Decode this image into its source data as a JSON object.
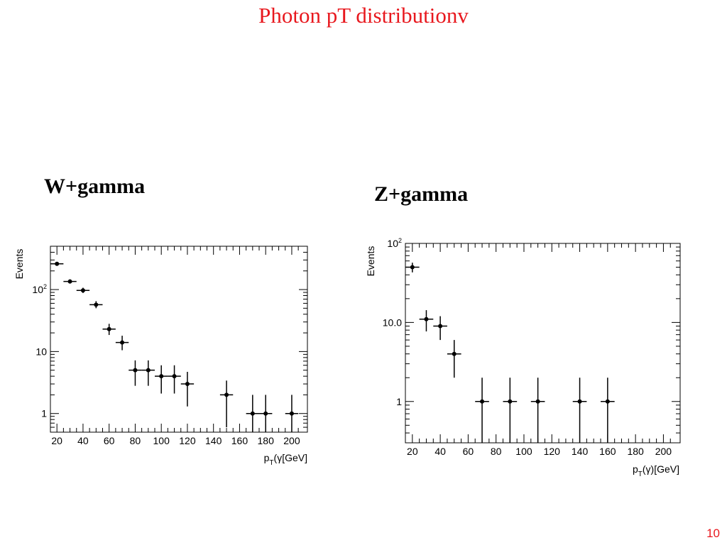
{
  "slide": {
    "title": "Photon pT distributionv",
    "page_number": "10"
  },
  "colors": {
    "title": "#e8181e",
    "page_number": "#e8181e",
    "markers": "#000000"
  },
  "chart_data": [
    {
      "type": "scatter",
      "title": "W+gamma",
      "ylabel": "Events",
      "xlabel": "p_T(γ[GeV]",
      "x_ticks": [
        "20",
        "40",
        "60",
        "80",
        "100",
        "120",
        "140",
        "160",
        "180",
        "200"
      ],
      "y_ticks": [
        "1",
        "10",
        "10^2"
      ],
      "y_scale": "log",
      "xlim": [
        15,
        212
      ],
      "ylim": [
        0.5,
        500
      ],
      "points": [
        {
          "x": 20,
          "y": 260,
          "ylo": 245,
          "yhi": 275,
          "xerr": 5
        },
        {
          "x": 30,
          "y": 135,
          "ylo": 125,
          "yhi": 146,
          "xerr": 5
        },
        {
          "x": 40,
          "y": 97,
          "ylo": 88,
          "yhi": 107,
          "xerr": 5
        },
        {
          "x": 50,
          "y": 57,
          "ylo": 50,
          "yhi": 65,
          "xerr": 5
        },
        {
          "x": 60,
          "y": 23,
          "ylo": 18.5,
          "yhi": 28,
          "xerr": 5
        },
        {
          "x": 70,
          "y": 14,
          "ylo": 10.5,
          "yhi": 18,
          "xerr": 5
        },
        {
          "x": 80,
          "y": 5,
          "ylo": 2.8,
          "yhi": 7.2,
          "xerr": 5
        },
        {
          "x": 90,
          "y": 5,
          "ylo": 2.8,
          "yhi": 7.2,
          "xerr": 5
        },
        {
          "x": 100,
          "y": 4,
          "ylo": 2.1,
          "yhi": 6,
          "xerr": 5
        },
        {
          "x": 110,
          "y": 4,
          "ylo": 2.1,
          "yhi": 6,
          "xerr": 5
        },
        {
          "x": 120,
          "y": 3,
          "ylo": 1.3,
          "yhi": 4.7,
          "xerr": 5
        },
        {
          "x": 150,
          "y": 2,
          "ylo": 0.6,
          "yhi": 3.4,
          "xerr": 5
        },
        {
          "x": 170,
          "y": 1,
          "ylo": 0.5,
          "yhi": 2,
          "xerr": 5
        },
        {
          "x": 180,
          "y": 1,
          "ylo": 0.5,
          "yhi": 2,
          "xerr": 5
        },
        {
          "x": 200,
          "y": 1,
          "ylo": 0.5,
          "yhi": 2,
          "xerr": 5
        }
      ]
    },
    {
      "type": "scatter",
      "title": "Z+gamma",
      "ylabel": "Events",
      "xlabel": "p_T(γ)[GeV]",
      "x_ticks": [
        "20",
        "40",
        "60",
        "80",
        "100",
        "120",
        "140",
        "160",
        "180",
        "200"
      ],
      "y_ticks": [
        "1",
        "10.0",
        "10^2"
      ],
      "y_scale": "log",
      "xlim": [
        15,
        212
      ],
      "ylim": [
        0.3,
        100
      ],
      "points": [
        {
          "x": 20,
          "y": 50,
          "ylo": 43,
          "yhi": 57,
          "xerr": 5
        },
        {
          "x": 30,
          "y": 11,
          "ylo": 7.7,
          "yhi": 14.3,
          "xerr": 5
        },
        {
          "x": 40,
          "y": 9,
          "ylo": 6,
          "yhi": 12,
          "xerr": 5
        },
        {
          "x": 50,
          "y": 4,
          "ylo": 2,
          "yhi": 6,
          "xerr": 5
        },
        {
          "x": 70,
          "y": 1,
          "ylo": 0.3,
          "yhi": 2,
          "xerr": 5
        },
        {
          "x": 90,
          "y": 1,
          "ylo": 0.3,
          "yhi": 2,
          "xerr": 5
        },
        {
          "x": 110,
          "y": 1,
          "ylo": 0.3,
          "yhi": 2,
          "xerr": 5
        },
        {
          "x": 140,
          "y": 1,
          "ylo": 0.3,
          "yhi": 2,
          "xerr": 5
        },
        {
          "x": 160,
          "y": 1,
          "ylo": 0.3,
          "yhi": 2,
          "xerr": 5
        }
      ]
    }
  ]
}
